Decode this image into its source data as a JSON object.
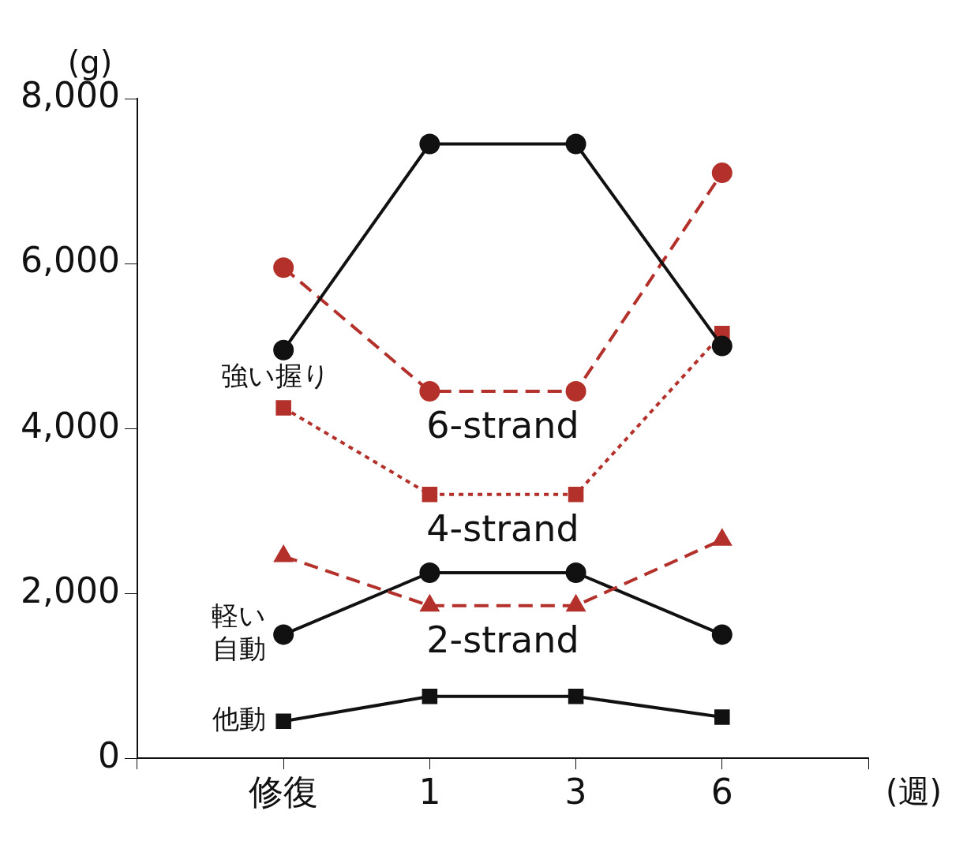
{
  "chart_data": {
    "type": "line",
    "xlabel": "(週)",
    "ylabel": "(g)",
    "categories": [
      null,
      "修復",
      "1",
      "3",
      "6",
      null
    ],
    "ylim": [
      0,
      8000
    ],
    "yticks": [
      {
        "value": 0,
        "label": "0"
      },
      {
        "value": 2000,
        "label": "2,000"
      },
      {
        "value": 4000,
        "label": "4,000"
      },
      {
        "value": 6000,
        "label": "6,000"
      },
      {
        "value": 8000,
        "label": "8,000"
      }
    ],
    "grid": false,
    "legend": false,
    "series": [
      {
        "name": "強い握り",
        "color": "#111111",
        "marker": "circle",
        "line_style": "solid",
        "values": [
          null,
          4950,
          7450,
          7450,
          5000,
          null
        ]
      },
      {
        "name": "6-strand",
        "color": "#b3302b",
        "marker": "circle",
        "line_style": "dashed",
        "values": [
          null,
          5950,
          4450,
          4450,
          7100,
          null
        ]
      },
      {
        "name": "4-strand",
        "color": "#b3302b",
        "marker": "square",
        "line_style": "dotted",
        "values": [
          null,
          4250,
          3200,
          3200,
          5150,
          null
        ]
      },
      {
        "name": "2-strand",
        "color": "#b3302b",
        "marker": "triangle",
        "line_style": "dashed",
        "values": [
          null,
          2450,
          1850,
          1850,
          2650,
          null
        ]
      },
      {
        "name": "軽い自動",
        "color": "#111111",
        "marker": "circle",
        "line_style": "solid",
        "values": [
          null,
          1500,
          2250,
          2250,
          1500,
          null
        ]
      },
      {
        "name": "他動",
        "color": "#111111",
        "marker": "square",
        "line_style": "solid",
        "values": [
          null,
          450,
          750,
          750,
          500,
          null
        ]
      }
    ]
  }
}
